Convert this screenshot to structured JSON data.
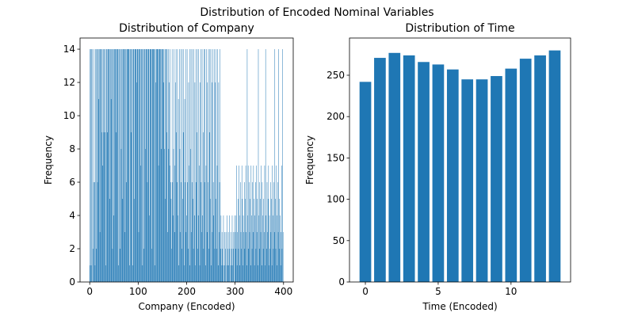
{
  "title": "Distribution of Encoded Nominal Variables",
  "chart_data": [
    {
      "type": "bar",
      "title": "Distribution of Company",
      "xlabel": "Company (Encoded)",
      "ylabel": "Frequency",
      "color": "#1f77b4",
      "xlim": [
        -20,
        420
      ],
      "xticks": [
        0,
        100,
        200,
        300,
        400
      ],
      "ylim": [
        0,
        14.67
      ],
      "yticks": [
        0,
        2,
        4,
        6,
        8,
        10,
        12,
        14
      ],
      "x": [
        0,
        1,
        2,
        3,
        4,
        5,
        6,
        7,
        8,
        9,
        10,
        11,
        12,
        13,
        14,
        15,
        16,
        17,
        18,
        19,
        20,
        21,
        22,
        23,
        24,
        25,
        26,
        27,
        28,
        29,
        30,
        31,
        32,
        33,
        34,
        35,
        36,
        37,
        38,
        39,
        40,
        41,
        42,
        43,
        44,
        45,
        46,
        47,
        48,
        49,
        50,
        51,
        52,
        53,
        54,
        55,
        56,
        57,
        58,
        59,
        60,
        61,
        62,
        63,
        64,
        65,
        66,
        67,
        68,
        69,
        70,
        71,
        72,
        73,
        74,
        75,
        76,
        77,
        78,
        79,
        80,
        81,
        82,
        83,
        84,
        85,
        86,
        87,
        88,
        89,
        90,
        91,
        92,
        93,
        94,
        95,
        96,
        97,
        98,
        99,
        100,
        101,
        102,
        103,
        104,
        105,
        106,
        107,
        108,
        109,
        110,
        111,
        112,
        113,
        114,
        115,
        116,
        117,
        118,
        119,
        120,
        121,
        122,
        123,
        124,
        125,
        126,
        127,
        128,
        129,
        130,
        131,
        132,
        133,
        134,
        135,
        136,
        137,
        138,
        139,
        140,
        141,
        142,
        143,
        144,
        145,
        146,
        147,
        148,
        149,
        150,
        151,
        152,
        153,
        154,
        155,
        156,
        157,
        158,
        159,
        160,
        161,
        162,
        163,
        164,
        165,
        166,
        167,
        168,
        169,
        170,
        171,
        172,
        173,
        174,
        175,
        176,
        177,
        178,
        179,
        180,
        181,
        182,
        183,
        184,
        185,
        186,
        187,
        188,
        189,
        190,
        191,
        192,
        193,
        194,
        195,
        196,
        197,
        198,
        199,
        200,
        201,
        202,
        203,
        204,
        205,
        206,
        207,
        208,
        209,
        210,
        211,
        212,
        213,
        214,
        215,
        216,
        217,
        218,
        219,
        220,
        221,
        222,
        223,
        224,
        225,
        226,
        227,
        228,
        229,
        230,
        231,
        232,
        233,
        234,
        235,
        236,
        237,
        238,
        239,
        240,
        241,
        242,
        243,
        244,
        245,
        246,
        247,
        248,
        249,
        250,
        251,
        252,
        253,
        254,
        255,
        256,
        257,
        258,
        259,
        260,
        261,
        262,
        263,
        264,
        265,
        266,
        267,
        268,
        269,
        270,
        271,
        272,
        273,
        274,
        275,
        276,
        277,
        278,
        279,
        280,
        281,
        282,
        283,
        284,
        285,
        286,
        287,
        288,
        289,
        290,
        291,
        292,
        293,
        294,
        295,
        296,
        297,
        298,
        299,
        300,
        301,
        302,
        303,
        304,
        305,
        306,
        307,
        308,
        309,
        310,
        311,
        312,
        313,
        314,
        315,
        316,
        317,
        318,
        319,
        320,
        321,
        322,
        323,
        324,
        325,
        326,
        327,
        328,
        329,
        330,
        331,
        332,
        333,
        334,
        335,
        336,
        337,
        338,
        339,
        340,
        341,
        342,
        343,
        344,
        345,
        346,
        347,
        348,
        349,
        350,
        351,
        352,
        353,
        354,
        355,
        356,
        357,
        358,
        359,
        360,
        361,
        362,
        363,
        364,
        365,
        366,
        367,
        368,
        369,
        370,
        371,
        372,
        373,
        374,
        375,
        376,
        377,
        378,
        379,
        380,
        381,
        382,
        383,
        384,
        385,
        386,
        387,
        388,
        389,
        390,
        391,
        392,
        393,
        394,
        395,
        396,
        397,
        398,
        399
      ],
      "values": [
        14,
        1,
        14,
        1,
        14,
        14,
        0,
        2,
        6,
        14,
        6,
        1,
        14,
        14,
        2,
        14,
        6,
        14,
        11,
        14,
        14,
        3,
        14,
        14,
        14,
        9,
        14,
        7,
        14,
        9,
        14,
        14,
        9,
        1,
        14,
        14,
        9,
        14,
        14,
        14,
        14,
        5,
        14,
        14,
        11,
        14,
        14,
        2,
        14,
        14,
        4,
        14,
        14,
        14,
        14,
        9,
        14,
        14,
        14,
        1,
        14,
        14,
        14,
        2,
        14,
        8,
        14,
        14,
        5,
        14,
        14,
        14,
        14,
        3,
        14,
        14,
        6,
        14,
        14,
        14,
        14,
        14,
        1,
        14,
        14,
        14,
        9,
        14,
        14,
        1,
        14,
        14,
        5,
        14,
        14,
        14,
        14,
        12,
        14,
        14,
        14,
        3,
        14,
        14,
        14,
        7,
        14,
        14,
        14,
        1,
        14,
        14,
        2,
        14,
        14,
        8,
        14,
        14,
        14,
        6,
        14,
        14,
        14,
        4,
        14,
        14,
        14,
        14,
        2,
        14,
        14,
        14,
        14,
        14,
        1,
        14,
        12,
        14,
        14,
        14,
        14,
        14,
        7,
        14,
        14,
        14,
        14,
        14,
        8,
        14,
        14,
        14,
        12,
        14,
        8,
        14,
        5,
        14,
        14,
        9,
        14,
        3,
        14,
        8,
        12,
        7,
        14,
        6,
        5,
        2,
        14,
        6,
        4,
        8,
        14,
        3,
        7,
        12,
        14,
        9,
        6,
        14,
        4,
        11,
        1,
        14,
        8,
        3,
        14,
        6,
        2,
        14,
        5,
        9,
        14,
        1,
        11,
        6,
        14,
        3,
        4,
        14,
        6,
        2,
        12,
        7,
        14,
        1,
        8,
        14,
        3,
        6,
        14,
        5,
        2,
        14,
        4,
        12,
        1,
        14,
        6,
        9,
        14,
        2,
        4,
        14,
        7,
        1,
        12,
        14,
        6,
        3,
        14,
        4,
        9,
        2,
        14,
        6,
        14,
        1,
        7,
        14,
        3,
        12,
        6,
        14,
        2,
        9,
        14,
        5,
        14,
        1,
        12,
        3,
        14,
        6,
        4,
        14,
        2,
        12,
        5,
        14,
        2,
        7,
        14,
        1,
        12,
        3,
        6,
        14,
        2,
        4,
        1,
        3,
        2,
        1,
        4,
        0,
        3,
        1,
        2,
        3,
        0,
        4,
        1,
        2,
        3,
        1,
        4,
        2,
        0,
        3,
        1,
        2,
        4,
        1,
        3,
        2,
        0,
        4,
        3,
        2,
        4,
        7,
        1,
        3,
        5,
        2,
        7,
        4,
        1,
        6,
        3,
        2,
        7,
        5,
        1,
        4,
        3,
        6,
        2,
        5,
        7,
        3,
        1,
        14,
        4,
        7,
        2,
        6,
        3,
        5,
        1,
        7,
        4,
        2,
        6,
        3,
        7,
        5,
        1,
        4,
        6,
        2,
        7,
        3,
        5,
        1,
        14,
        4,
        6,
        2,
        5,
        3,
        7,
        1,
        6,
        4,
        2,
        5,
        3,
        7,
        1,
        14,
        4,
        2,
        6,
        3,
        5,
        7,
        1,
        4,
        2,
        6,
        3,
        5,
        1,
        7,
        4,
        2,
        6,
        3,
        14,
        5,
        2,
        7,
        4,
        1,
        6,
        3,
        14,
        5,
        2,
        4,
        1,
        3,
        7,
        2,
        14,
        3
      ]
    },
    {
      "type": "bar",
      "title": "Distribution of Time",
      "xlabel": "Time (Encoded)",
      "ylabel": "Frequency",
      "color": "#1f77b4",
      "xlim": [
        -1.09,
        14.09
      ],
      "xticks": [
        0,
        5,
        10
      ],
      "ylim": [
        0,
        295
      ],
      "yticks": [
        0,
        50,
        100,
        150,
        200,
        250
      ],
      "x": [
        0,
        1,
        2,
        3,
        4,
        5,
        6,
        7,
        8,
        9,
        10,
        11,
        12,
        13
      ],
      "values": [
        242,
        271,
        277,
        274,
        266,
        263,
        257,
        245,
        245,
        249,
        258,
        270,
        274,
        280
      ]
    }
  ]
}
